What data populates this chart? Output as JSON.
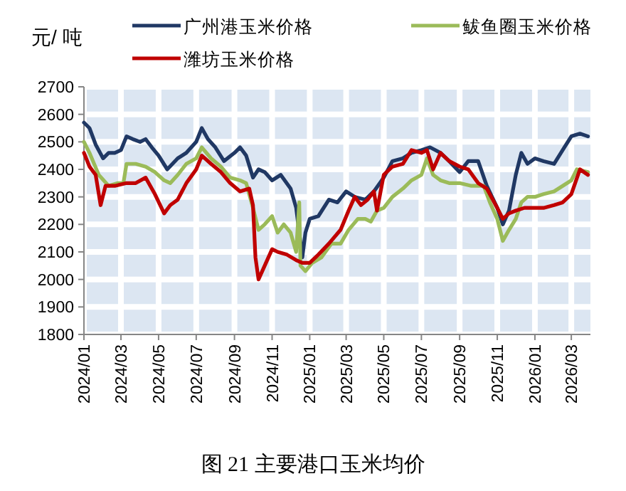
{
  "chart_data": {
    "type": "line",
    "title": "图 21 主要港口玉米均价",
    "ylabel": "元/ 吨",
    "legend": "top",
    "grid": true,
    "marker": "none",
    "line_style": "solid",
    "ylim": [
      1800,
      2700
    ],
    "yticks": [
      1800,
      1900,
      2000,
      2100,
      2200,
      2300,
      2400,
      2500,
      2600,
      2700
    ],
    "xlim": [
      "2024-01-01",
      "2026-04-01"
    ],
    "xticks": [
      {
        "value": "2024-01-01",
        "label": "2024/01"
      },
      {
        "value": "2024-03-01",
        "label": "2024/03"
      },
      {
        "value": "2024-05-01",
        "label": "2024/05"
      },
      {
        "value": "2024-07-01",
        "label": "2024/07"
      },
      {
        "value": "2024-09-01",
        "label": "2024/09"
      },
      {
        "value": "2024-11-01",
        "label": "2024/11"
      },
      {
        "value": "2025-01-01",
        "label": "2025/01"
      },
      {
        "value": "2025-03-01",
        "label": "2025/03"
      },
      {
        "value": "2025-05-01",
        "label": "2025/05"
      },
      {
        "value": "2025-07-01",
        "label": "2025/07"
      },
      {
        "value": "2025-09-01",
        "label": "2025/09"
      },
      {
        "value": "2025-11-01",
        "label": "2025/11"
      },
      {
        "value": "2026-01-01",
        "label": "2026/01"
      },
      {
        "value": "2026-03-01",
        "label": "2026/03"
      }
    ],
    "series": [
      {
        "name": "广州港玉米价格",
        "color": "#203864",
        "x": [
          "2024-01-01",
          "2024-01-10",
          "2024-01-20",
          "2024-02-01",
          "2024-02-10",
          "2024-02-20",
          "2024-03-01",
          "2024-03-10",
          "2024-03-20",
          "2024-04-01",
          "2024-04-10",
          "2024-04-20",
          "2024-05-01",
          "2024-05-15",
          "2024-06-01",
          "2024-06-15",
          "2024-07-01",
          "2024-07-10",
          "2024-07-20",
          "2024-08-01",
          "2024-08-15",
          "2024-09-01",
          "2024-09-10",
          "2024-09-20",
          "2024-10-01",
          "2024-10-10",
          "2024-10-20",
          "2024-11-01",
          "2024-11-15",
          "2024-12-01",
          "2024-12-10",
          "2024-12-20",
          "2024-12-25",
          "2025-01-01",
          "2025-01-15",
          "2025-02-01",
          "2025-02-15",
          "2025-03-01",
          "2025-03-15",
          "2025-04-01",
          "2025-04-15",
          "2025-05-01",
          "2025-05-15",
          "2025-06-01",
          "2025-06-15",
          "2025-07-01",
          "2025-07-15",
          "2025-08-01",
          "2025-08-15",
          "2025-09-01",
          "2025-09-15",
          "2025-10-01",
          "2025-10-15",
          "2025-11-01",
          "2025-11-10",
          "2025-11-20",
          "2025-12-01",
          "2025-12-10",
          "2025-12-20",
          "2026-01-01",
          "2026-01-15",
          "2026-02-01",
          "2026-02-15",
          "2026-03-01",
          "2026-03-15",
          "2026-03-28"
        ],
        "values": [
          2570,
          2550,
          2490,
          2440,
          2460,
          2460,
          2470,
          2520,
          2510,
          2500,
          2510,
          2480,
          2450,
          2400,
          2440,
          2460,
          2500,
          2550,
          2510,
          2480,
          2430,
          2460,
          2480,
          2450,
          2370,
          2400,
          2390,
          2360,
          2380,
          2330,
          2260,
          2080,
          2170,
          2220,
          2230,
          2290,
          2280,
          2320,
          2300,
          2290,
          2320,
          2370,
          2430,
          2440,
          2460,
          2470,
          2480,
          2460,
          2430,
          2390,
          2430,
          2430,
          2340,
          2260,
          2200,
          2250,
          2380,
          2460,
          2420,
          2440,
          2430,
          2420,
          2470,
          2520,
          2530,
          2520
        ]
      },
      {
        "name": "鲅鱼圈玉米价格",
        "color": "#9bbb59",
        "x": [
          "2024-01-01",
          "2024-01-10",
          "2024-01-25",
          "2024-02-10",
          "2024-02-25",
          "2024-03-05",
          "2024-03-10",
          "2024-03-25",
          "2024-04-10",
          "2024-04-25",
          "2024-05-10",
          "2024-05-20",
          "2024-06-01",
          "2024-06-15",
          "2024-07-01",
          "2024-07-10",
          "2024-07-25",
          "2024-08-10",
          "2024-08-25",
          "2024-09-10",
          "2024-09-20",
          "2024-10-01",
          "2024-10-10",
          "2024-10-20",
          "2024-11-01",
          "2024-11-10",
          "2024-11-20",
          "2024-12-01",
          "2024-12-10",
          "2024-12-15",
          "2024-12-17",
          "2024-12-25",
          "2025-01-05",
          "2025-01-20",
          "2025-02-05",
          "2025-02-20",
          "2025-03-05",
          "2025-03-20",
          "2025-04-01",
          "2025-04-10",
          "2025-04-20",
          "2025-05-01",
          "2025-05-15",
          "2025-06-01",
          "2025-06-15",
          "2025-07-01",
          "2025-07-10",
          "2025-07-20",
          "2025-08-01",
          "2025-08-15",
          "2025-09-01",
          "2025-09-20",
          "2025-10-10",
          "2025-10-20",
          "2025-11-01",
          "2025-11-10",
          "2025-11-20",
          "2025-12-01",
          "2025-12-10",
          "2025-12-20",
          "2026-01-01",
          "2026-01-15",
          "2026-02-01",
          "2026-02-15",
          "2026-03-01",
          "2026-03-10",
          "2026-03-28"
        ],
        "values": [
          2500,
          2460,
          2380,
          2340,
          2350,
          2350,
          2420,
          2420,
          2410,
          2390,
          2360,
          2350,
          2380,
          2420,
          2440,
          2480,
          2440,
          2410,
          2370,
          2360,
          2350,
          2260,
          2180,
          2200,
          2230,
          2170,
          2200,
          2170,
          2100,
          2280,
          2050,
          2030,
          2060,
          2080,
          2130,
          2130,
          2180,
          2220,
          2220,
          2210,
          2250,
          2260,
          2300,
          2330,
          2360,
          2380,
          2440,
          2380,
          2360,
          2350,
          2350,
          2340,
          2340,
          2280,
          2220,
          2140,
          2180,
          2220,
          2280,
          2300,
          2300,
          2310,
          2320,
          2340,
          2360,
          2400,
          2390
        ]
      },
      {
        "name": "潍坊玉米价格",
        "color": "#c00000",
        "x": [
          "2024-01-01",
          "2024-01-10",
          "2024-01-20",
          "2024-01-28",
          "2024-02-05",
          "2024-02-20",
          "2024-03-10",
          "2024-03-25",
          "2024-04-10",
          "2024-04-25",
          "2024-05-10",
          "2024-05-20",
          "2024-06-01",
          "2024-06-15",
          "2024-07-01",
          "2024-07-10",
          "2024-07-25",
          "2024-08-10",
          "2024-08-25",
          "2024-09-10",
          "2024-09-25",
          "2024-10-01",
          "2024-10-05",
          "2024-10-10",
          "2024-10-20",
          "2024-11-01",
          "2024-11-10",
          "2024-11-25",
          "2024-12-10",
          "2024-12-20",
          "2025-01-01",
          "2025-01-15",
          "2025-02-01",
          "2025-02-20",
          "2025-03-05",
          "2025-03-15",
          "2025-03-25",
          "2025-04-05",
          "2025-04-15",
          "2025-04-20",
          "2025-05-01",
          "2025-05-15",
          "2025-06-01",
          "2025-06-15",
          "2025-07-01",
          "2025-07-10",
          "2025-07-20",
          "2025-08-01",
          "2025-08-15",
          "2025-09-01",
          "2025-09-15",
          "2025-10-01",
          "2025-10-15",
          "2025-11-01",
          "2025-11-10",
          "2025-11-20",
          "2025-12-01",
          "2025-12-15",
          "2026-01-01",
          "2026-01-15",
          "2026-02-01",
          "2026-02-15",
          "2026-03-01",
          "2026-03-15",
          "2026-03-28"
        ],
        "values": [
          2460,
          2410,
          2380,
          2270,
          2340,
          2340,
          2350,
          2350,
          2370,
          2310,
          2240,
          2270,
          2290,
          2350,
          2400,
          2450,
          2420,
          2390,
          2350,
          2320,
          2330,
          2270,
          2080,
          2000,
          2050,
          2110,
          2100,
          2090,
          2070,
          2060,
          2060,
          2090,
          2130,
          2180,
          2250,
          2300,
          2270,
          2290,
          2320,
          2250,
          2380,
          2410,
          2420,
          2470,
          2460,
          2470,
          2400,
          2460,
          2430,
          2410,
          2400,
          2350,
          2330,
          2260,
          2220,
          2240,
          2250,
          2260,
          2260,
          2260,
          2270,
          2280,
          2310,
          2400,
          2380
        ]
      }
    ]
  }
}
